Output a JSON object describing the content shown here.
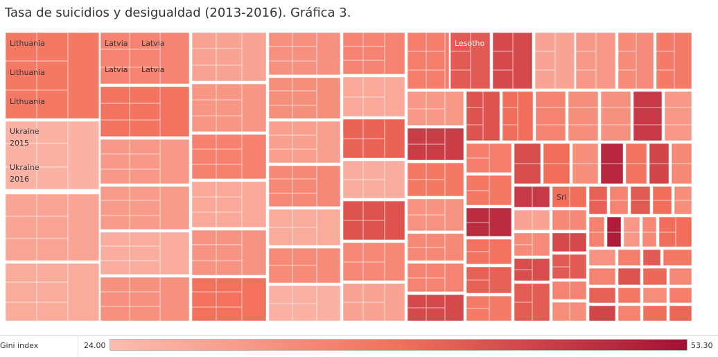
{
  "title": "Tasa de suicidios y desigualdad (2013-2016). Gráfica 3.",
  "colors": {
    "low": "#fbbdb0",
    "mid": "#f3705c",
    "high": "#a51035",
    "cell_border": "#ffffff",
    "label_dark": "#333333",
    "label_light": "#ffffff"
  },
  "legend": {
    "label": "Gini index",
    "min_label": "24.00",
    "max_label": "53.30"
  },
  "chart_data": {
    "type": "treemap",
    "color_measure": "Gini index",
    "color_range": [
      24.0,
      53.3
    ],
    "groups": [
      {
        "name": "Lithuania",
        "gini": 37.0,
        "labels": [
          "Lithuania",
          "Lithuania",
          "Lithuania"
        ]
      },
      {
        "name": "Ukraine",
        "gini": 26.0,
        "labels": [
          "Ukraine 2015",
          "Ukraine 2016"
        ]
      },
      {
        "name": "",
        "gini": 28.5
      },
      {
        "name": "",
        "gini": 27.5
      },
      {
        "name": "Latvia",
        "gini": 35.0,
        "labels": [
          "Latvia",
          "Latvia",
          "Latvia",
          "Latvia"
        ]
      },
      {
        "name": "",
        "gini": 38.0
      },
      {
        "name": "",
        "gini": 31.0
      },
      {
        "name": "",
        "gini": 30.5
      },
      {
        "name": "",
        "gini": 27.0
      },
      {
        "name": "",
        "gini": 32.5
      },
      {
        "name": "",
        "gini": 29.0
      },
      {
        "name": "",
        "gini": 31.5
      },
      {
        "name": "",
        "gini": 35.5
      },
      {
        "name": "",
        "gini": 28.0
      },
      {
        "name": "",
        "gini": 32.0
      },
      {
        "name": "",
        "gini": 38.5
      },
      {
        "name": "",
        "gini": 32.5
      },
      {
        "name": "",
        "gini": 33.0
      },
      {
        "name": "",
        "gini": 29.5
      },
      {
        "name": "",
        "gini": 34.0
      },
      {
        "name": "",
        "gini": 27.5
      },
      {
        "name": "",
        "gini": 33.5
      },
      {
        "name": "",
        "gini": 26.5
      },
      {
        "name": "",
        "gini": 35.0
      },
      {
        "name": "",
        "gini": 28.0
      },
      {
        "name": "",
        "gini": 40.5
      },
      {
        "name": "",
        "gini": 27.0
      },
      {
        "name": "",
        "gini": 43.0
      },
      {
        "name": "",
        "gini": 34.0
      },
      {
        "name": "",
        "gini": 29.0
      },
      {
        "name": "",
        "gini": 36.0
      },
      {
        "name": "",
        "gini": 31.0
      },
      {
        "name": "",
        "gini": 46.5
      },
      {
        "name": "",
        "gini": 37.0
      },
      {
        "name": "",
        "gini": 32.0
      },
      {
        "name": "",
        "gini": 34.0
      },
      {
        "name": "",
        "gini": 35.0
      },
      {
        "name": "",
        "gini": 44.5
      },
      {
        "name": "Lesotho",
        "gini": 42.0,
        "labels": [
          "Lesotho"
        ]
      },
      {
        "name": "",
        "gini": 44.5
      },
      {
        "name": "",
        "gini": 29.0
      },
      {
        "name": "",
        "gini": 31.0
      },
      {
        "name": "",
        "gini": 33.5
      },
      {
        "name": "",
        "gini": 36.5
      },
      {
        "name": "",
        "gini": 43.0
      },
      {
        "name": "",
        "gini": 39.0
      },
      {
        "name": "",
        "gini": 35.0
      },
      {
        "name": "",
        "gini": 33.0
      },
      {
        "name": "",
        "gini": 32.5
      },
      {
        "name": "",
        "gini": 47.0
      },
      {
        "name": "",
        "gini": 31.0
      },
      {
        "name": "",
        "gini": 36.0
      },
      {
        "name": "",
        "gini": 44.0
      },
      {
        "name": "",
        "gini": 39.0
      },
      {
        "name": "",
        "gini": 33.0
      },
      {
        "name": "",
        "gini": 50.0
      },
      {
        "name": "",
        "gini": 38.0
      },
      {
        "name": "",
        "gini": 45.0
      },
      {
        "name": "",
        "gini": 34.0
      },
      {
        "name": "",
        "gini": 37.0
      },
      {
        "name": "",
        "gini": 49.0
      },
      {
        "name": "",
        "gini": 47.0
      },
      {
        "name": "",
        "gini": 29.0
      },
      {
        "name": "",
        "gini": 33.5
      },
      {
        "name": "Sri",
        "gini": 39.0,
        "labels": [
          "Sri"
        ]
      },
      {
        "name": "",
        "gini": 34.0
      },
      {
        "name": "",
        "gini": 41.0
      },
      {
        "name": "",
        "gini": 35.0
      },
      {
        "name": "",
        "gini": 42.0
      },
      {
        "name": "",
        "gini": 39.0
      },
      {
        "name": "",
        "gini": 33.0
      },
      {
        "name": "",
        "gini": 38.0
      },
      {
        "name": "",
        "gini": 41.0
      },
      {
        "name": "",
        "gini": 36.5
      },
      {
        "name": "",
        "gini": 44.0
      },
      {
        "name": "",
        "gini": 41.5
      },
      {
        "name": "",
        "gini": 44.5
      },
      {
        "name": "",
        "gini": 42.0
      },
      {
        "name": "",
        "gini": 35.0
      },
      {
        "name": "",
        "gini": 33.0
      },
      {
        "name": "",
        "gini": 35.5
      },
      {
        "name": "",
        "gini": 51.5
      },
      {
        "name": "",
        "gini": 31.0
      },
      {
        "name": "",
        "gini": 34.0
      },
      {
        "name": "",
        "gini": 39.0
      },
      {
        "name": "",
        "gini": 32.0
      },
      {
        "name": "",
        "gini": 36.0
      },
      {
        "name": "",
        "gini": 42.0
      },
      {
        "name": "",
        "gini": 37.0
      },
      {
        "name": "",
        "gini": 35.0
      },
      {
        "name": "",
        "gini": 43.0
      },
      {
        "name": "",
        "gini": 40.0
      },
      {
        "name": "",
        "gini": 34.0
      },
      {
        "name": "",
        "gini": 41.0
      },
      {
        "name": "",
        "gini": 37.0
      },
      {
        "name": "",
        "gini": 33.0
      },
      {
        "name": "",
        "gini": 36.0
      },
      {
        "name": "",
        "gini": 45.0
      },
      {
        "name": "",
        "gini": 35.0
      },
      {
        "name": "",
        "gini": 39.0
      },
      {
        "name": "",
        "gini": 40.0
      }
    ]
  }
}
